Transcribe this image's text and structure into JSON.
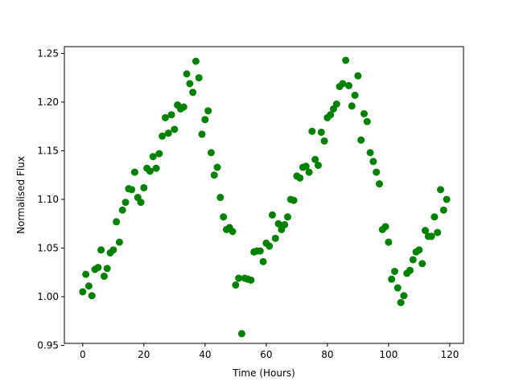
{
  "chart_data": {
    "type": "scatter",
    "xlabel": "Time (Hours)",
    "ylabel": "Normalised Flux",
    "xlim": [
      -6,
      124.5
    ],
    "ylim": [
      0.952,
      1.257
    ],
    "x_ticks": [
      0,
      20,
      40,
      60,
      80,
      100,
      120
    ],
    "y_ticks": [
      0.95,
      1.0,
      1.05,
      1.1,
      1.15,
      1.2,
      1.25
    ],
    "x_tick_labels": [
      "0",
      "20",
      "40",
      "60",
      "80",
      "100",
      "120"
    ],
    "y_tick_labels": [
      "0.95",
      "1.00",
      "1.05",
      "1.10",
      "1.15",
      "1.20",
      "1.25"
    ],
    "marker_color": "#008000",
    "grid": false,
    "series": [
      {
        "x": [
          0,
          1,
          2,
          3,
          4,
          5,
          6,
          7,
          8,
          9,
          10,
          11,
          12,
          13,
          14,
          15,
          16,
          17,
          18,
          19,
          20,
          21,
          22,
          23,
          24,
          25,
          26,
          27,
          28,
          29,
          30,
          31,
          32,
          33,
          34,
          35,
          36,
          37,
          38,
          39,
          40,
          41,
          42,
          43,
          44,
          45,
          46,
          47,
          48,
          49,
          50,
          51,
          52,
          53,
          54,
          55,
          56,
          57,
          58,
          59,
          60,
          61,
          62,
          63,
          64,
          65,
          66,
          67,
          68,
          69,
          70,
          71,
          72,
          73,
          74,
          75,
          76,
          77,
          78,
          79,
          80,
          81,
          82,
          83,
          84,
          85,
          86,
          87,
          88,
          89,
          90,
          91,
          92,
          93,
          94,
          95,
          96,
          97,
          98,
          99,
          100,
          101,
          102,
          103,
          104,
          105,
          106,
          107,
          108,
          109,
          110,
          111,
          112,
          113,
          114,
          115,
          116,
          117,
          118,
          119
        ],
        "y": [
          1.005,
          1.023,
          1.011,
          1.001,
          1.028,
          1.03,
          1.048,
          1.021,
          1.029,
          1.045,
          1.048,
          1.077,
          1.056,
          1.089,
          1.097,
          1.111,
          1.11,
          1.128,
          1.102,
          1.097,
          1.112,
          1.132,
          1.129,
          1.144,
          1.132,
          1.147,
          1.165,
          1.184,
          1.168,
          1.187,
          1.172,
          1.197,
          1.193,
          1.195,
          1.229,
          1.219,
          1.21,
          1.242,
          1.225,
          1.167,
          1.182,
          1.191,
          1.148,
          1.125,
          1.133,
          1.102,
          1.082,
          1.069,
          1.071,
          1.067,
          1.012,
          1.019,
          0.962,
          1.019,
          1.018,
          1.017,
          1.046,
          1.047,
          1.047,
          1.036,
          1.055,
          1.052,
          1.084,
          1.06,
          1.075,
          1.069,
          1.074,
          1.082,
          1.1,
          1.099,
          1.124,
          1.122,
          1.133,
          1.134,
          1.128,
          1.17,
          1.141,
          1.135,
          1.169,
          1.16,
          1.184,
          1.187,
          1.193,
          1.198,
          1.216,
          1.219,
          1.243,
          1.217,
          1.196,
          1.207,
          1.227,
          1.161,
          1.188,
          1.18,
          1.148,
          1.139,
          1.128,
          1.116,
          1.069,
          1.072,
          1.056,
          1.018,
          1.026,
          1.009,
          0.994,
          1.001,
          1.024,
          1.027,
          1.038,
          1.046,
          1.048,
          1.034,
          1.068,
          1.062,
          1.062,
          1.082,
          1.066,
          1.11,
          1.089,
          1.1
        ]
      }
    ]
  }
}
